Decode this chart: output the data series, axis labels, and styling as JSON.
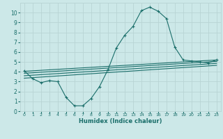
{
  "background_color": "#cce8e8",
  "grid_color": "#b8d4d4",
  "line_color": "#1a6e6a",
  "xlabel": "Humidex (Indice chaleur)",
  "xlim": [
    -0.5,
    23.5
  ],
  "ylim": [
    0,
    11
  ],
  "xticks": [
    0,
    1,
    2,
    3,
    4,
    5,
    6,
    7,
    8,
    9,
    10,
    11,
    12,
    13,
    14,
    15,
    16,
    17,
    18,
    19,
    20,
    21,
    22,
    23
  ],
  "yticks": [
    0,
    1,
    2,
    3,
    4,
    5,
    6,
    7,
    8,
    9,
    10
  ],
  "main_x": [
    0,
    1,
    2,
    3,
    4,
    5,
    6,
    7,
    8,
    9,
    10,
    11,
    12,
    13,
    14,
    15,
    16,
    17,
    18,
    19,
    20,
    21,
    22,
    23
  ],
  "main_y": [
    4.1,
    3.3,
    2.9,
    3.1,
    3.0,
    1.4,
    0.55,
    0.55,
    1.3,
    2.5,
    4.2,
    6.4,
    7.7,
    8.6,
    10.2,
    10.55,
    10.15,
    9.4,
    6.5,
    5.2,
    5.1,
    5.0,
    4.9,
    5.2
  ],
  "line1_x": [
    0,
    23
  ],
  "line1_y": [
    4.05,
    5.2
  ],
  "line2_x": [
    0,
    23
  ],
  "line2_y": [
    3.85,
    5.05
  ],
  "line3_x": [
    0,
    23
  ],
  "line3_y": [
    3.6,
    4.85
  ],
  "line4_x": [
    0,
    23
  ],
  "line4_y": [
    3.35,
    4.65
  ]
}
